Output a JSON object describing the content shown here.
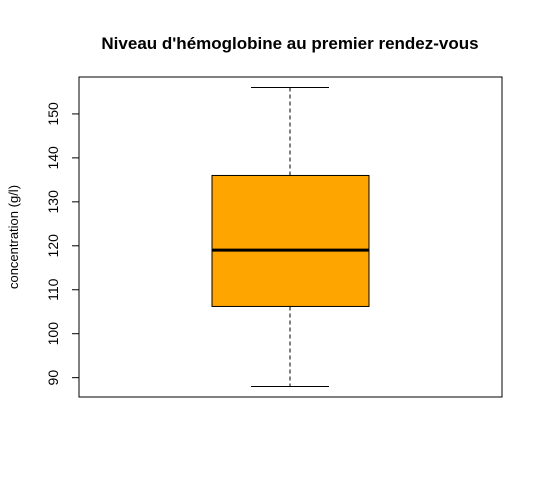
{
  "chart_data": {
    "type": "boxplot",
    "title": "Niveau d'hémoglobine au premier rendez-vous",
    "xlabel": "",
    "ylabel": "concentration (g/l)",
    "ylim": [
      85.6,
      158.4
    ],
    "yticks": [
      90,
      100,
      110,
      120,
      130,
      140,
      150
    ],
    "box": {
      "min": 88,
      "q1": 106.2,
      "median": 119,
      "q3": 136,
      "max": 156
    },
    "box_color": "#FFA500",
    "grid": false
  }
}
